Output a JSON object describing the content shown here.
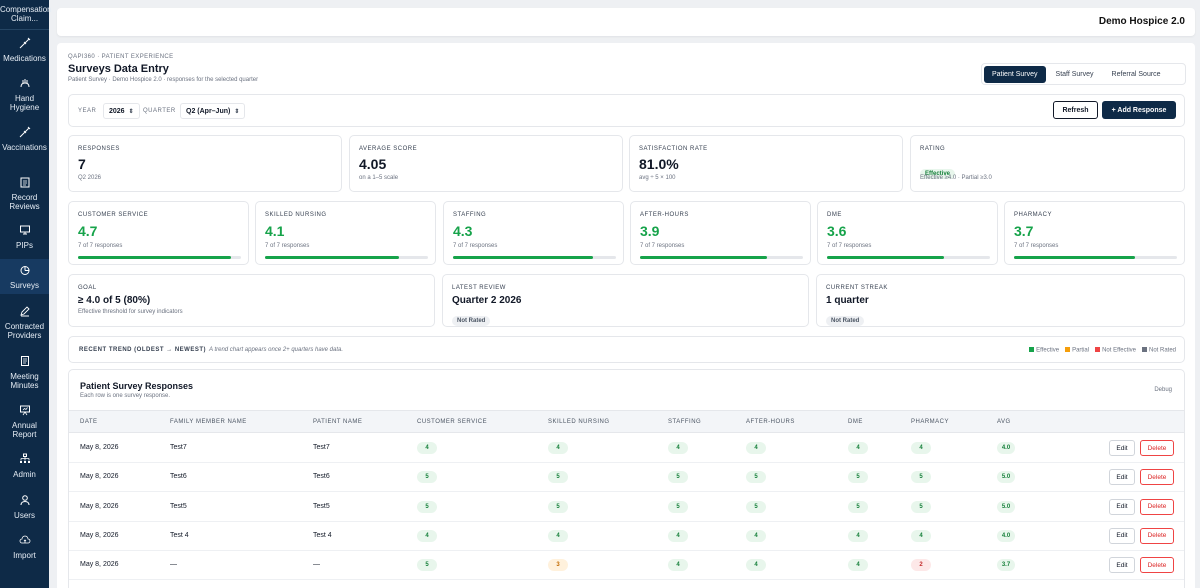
{
  "sidebar": {
    "top_label": "Compensation Claim...",
    "items": [
      {
        "label": "Medications",
        "icon": "syringe-icon"
      },
      {
        "label": "Hand Hygiene",
        "icon": "hands-icon"
      },
      {
        "label": "Vaccinations",
        "icon": "syringe-icon"
      },
      {
        "label": "Record Reviews",
        "icon": "clipboard-icon"
      },
      {
        "label": "PIPs",
        "icon": "monitor-icon"
      },
      {
        "label": "Surveys",
        "icon": "chart-pie-icon",
        "active": true
      },
      {
        "label": "Contracted Providers",
        "icon": "pen-icon"
      },
      {
        "label": "Meeting Minutes",
        "icon": "notes-icon"
      },
      {
        "label": "Annual Report",
        "icon": "presentation-icon"
      },
      {
        "label": "Admin",
        "icon": "org-chart-icon"
      },
      {
        "label": "Users",
        "icon": "user-icon"
      },
      {
        "label": "Import",
        "icon": "cloud-upload-icon"
      }
    ]
  },
  "topbar": {
    "brand": "Demo Hospice 2.0"
  },
  "page": {
    "breadcrumb": "QAPI360 · PATIENT EXPERIENCE",
    "title": "Surveys Data Entry",
    "subtitle": "Patient Survey · Demo Hospice 2.0 · responses for the selected quarter"
  },
  "tabs": [
    {
      "label": "Patient Survey",
      "active": true
    },
    {
      "label": "Staff Survey",
      "active": false
    },
    {
      "label": "Referral Source",
      "active": false
    }
  ],
  "filters": {
    "year_label": "YEAR",
    "year_value": "2026",
    "quarter_label": "QUARTER",
    "quarter_value": "Q2 (Apr–Jun)",
    "refresh_label": "Refresh",
    "add_label": "+ Add Response"
  },
  "kpis": {
    "responses": {
      "label": "RESPONSES",
      "value": "7",
      "sub": "Q2 2026"
    },
    "average": {
      "label": "AVERAGE SCORE",
      "value": "4.05",
      "sub": "on a 1–5 scale"
    },
    "satisfaction": {
      "label": "SATISFACTION RATE",
      "value": "81.0%",
      "sub": "avg ÷ 5 × 100"
    },
    "rating": {
      "label": "RATING",
      "badge": "Effective",
      "sub": "Effective ≥4.0 · Partial ≥3.0"
    }
  },
  "categories": [
    {
      "label": "CUSTOMER SERVICE",
      "value": "4.7",
      "sub": "7 of 7 responses",
      "fill_pct": 94
    },
    {
      "label": "SKILLED NURSING",
      "value": "4.1",
      "sub": "7 of 7 responses",
      "fill_pct": 82
    },
    {
      "label": "STAFFING",
      "value": "4.3",
      "sub": "7 of 7 responses",
      "fill_pct": 86
    },
    {
      "label": "AFTER-HOURS",
      "value": "3.9",
      "sub": "7 of 7 responses",
      "fill_pct": 78
    },
    {
      "label": "DME",
      "value": "3.6",
      "sub": "7 of 7 responses",
      "fill_pct": 72
    },
    {
      "label": "PHARMACY",
      "value": "3.7",
      "sub": "7 of 7 responses",
      "fill_pct": 74
    }
  ],
  "goal": {
    "label": "GOAL",
    "value": "≥ 4.0 of 5 (80%)",
    "sub": "Effective threshold for survey indicators"
  },
  "latest_review": {
    "label": "LATEST REVIEW",
    "value": "Quarter 2 2026",
    "badge": "Not Rated"
  },
  "streak": {
    "label": "CURRENT STREAK",
    "value": "1 quarter",
    "badge": "Not Rated"
  },
  "trend": {
    "label": "RECENT TREND (OLDEST → NEWEST)",
    "note": "A trend chart appears once 2+ quarters have data.",
    "legend": [
      {
        "label": "Effective",
        "color": "#16a34a"
      },
      {
        "label": "Partial",
        "color": "#f59e0b"
      },
      {
        "label": "Not Effective",
        "color": "#ef4444"
      },
      {
        "label": "Not Rated",
        "color": "#6b7280"
      }
    ]
  },
  "responses_table": {
    "title": "Patient Survey Responses",
    "subtitle": "Each row is one survey response.",
    "debug_label": "Debug",
    "columns": [
      "DATE",
      "FAMILY MEMBER NAME",
      "PATIENT NAME",
      "CUSTOMER SERVICE",
      "SKILLED NURSING",
      "STAFFING",
      "AFTER-HOURS",
      "DME",
      "PHARMACY",
      "AVG"
    ],
    "edit_label": "Edit",
    "delete_label": "Delete",
    "rows": [
      {
        "date": "May 8, 2026",
        "family": "Test7",
        "patient": "Test7",
        "scores": [
          "4",
          "4",
          "4",
          "4",
          "4",
          "4"
        ],
        "avg": "4.0"
      },
      {
        "date": "May 8, 2026",
        "family": "Test6",
        "patient": "Test6",
        "scores": [
          "5",
          "5",
          "5",
          "5",
          "5",
          "5"
        ],
        "avg": "5.0"
      },
      {
        "date": "May 8, 2026",
        "family": "Test5",
        "patient": "Test5",
        "scores": [
          "5",
          "5",
          "5",
          "5",
          "5",
          "5"
        ],
        "avg": "5.0"
      },
      {
        "date": "May 8, 2026",
        "family": "Test 4",
        "patient": "Test 4",
        "scores": [
          "4",
          "4",
          "4",
          "4",
          "4",
          "4"
        ],
        "avg": "4.0"
      },
      {
        "date": "May 8, 2026",
        "family": "—",
        "patient": "—",
        "scores": [
          "5",
          "3",
          "4",
          "4",
          "4",
          "2"
        ],
        "avg": "3.7"
      }
    ]
  }
}
